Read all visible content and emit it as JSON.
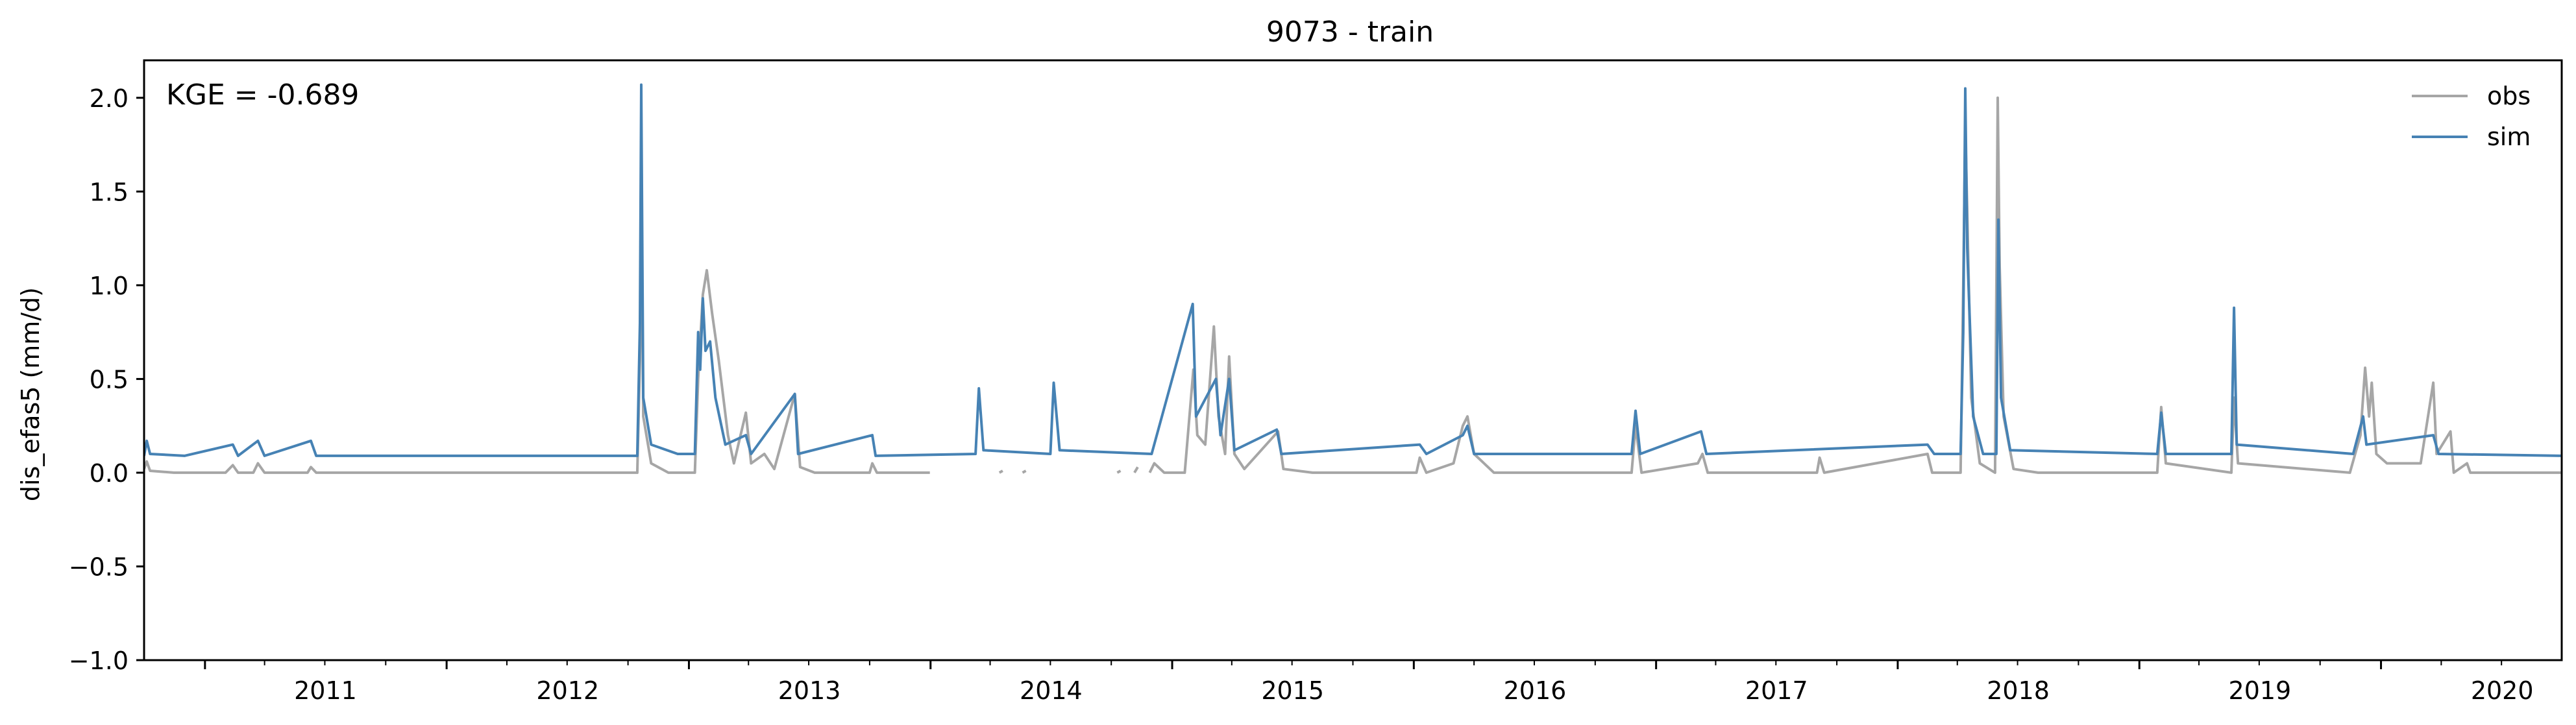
{
  "chart_data": {
    "type": "line",
    "title": "9073 - train",
    "xlabel": "",
    "ylabel": "dis_efas5 (mm/d)",
    "annotation": "KGE = -0.689",
    "xlim": [
      "2010-10-01",
      "2020-09-30"
    ],
    "ylim": [
      -1.0,
      2.2
    ],
    "y_ticks": [
      -1.0,
      -0.5,
      0.0,
      0.5,
      1.0,
      1.5,
      2.0
    ],
    "y_tick_labels": [
      "−1.0",
      "−0.5",
      "0.0",
      "0.5",
      "1.0",
      "1.5",
      "2.0"
    ],
    "x_tick_labels": [
      "2011",
      "2012",
      "2013",
      "2014",
      "2015",
      "2016",
      "2017",
      "2018",
      "2019",
      "2020"
    ],
    "x_ticks": [
      "2011-01-01",
      "2012-01-01",
      "2013-01-01",
      "2014-01-01",
      "2015-01-01",
      "2016-01-01",
      "2017-01-01",
      "2018-01-01",
      "2019-01-01",
      "2020-01-01"
    ],
    "grid": false,
    "legend_position": "top-right",
    "series": [
      {
        "name": "obs",
        "color": "#a6a6a6",
        "points": [
          [
            "2010-10-01",
            0.02
          ],
          [
            "2010-10-05",
            0.06
          ],
          [
            "2010-10-10",
            0.01
          ],
          [
            "2010-11-15",
            0.0
          ],
          [
            "2011-02-01",
            0.0
          ],
          [
            "2011-02-12",
            0.04
          ],
          [
            "2011-02-20",
            0.0
          ],
          [
            "2011-03-15",
            0.0
          ],
          [
            "2011-03-22",
            0.05
          ],
          [
            "2011-04-01",
            0.0
          ],
          [
            "2011-06-05",
            0.0
          ],
          [
            "2011-06-10",
            0.03
          ],
          [
            "2011-06-18",
            0.0
          ],
          [
            "2012-06-01",
            0.0
          ],
          [
            "2012-10-15",
            0.0
          ],
          [
            "2012-10-19",
            0.6
          ],
          [
            "2012-10-21",
            1.55
          ],
          [
            "2012-10-24",
            0.3
          ],
          [
            "2012-11-05",
            0.05
          ],
          [
            "2012-12-01",
            0.0
          ],
          [
            "2013-01-10",
            0.0
          ],
          [
            "2013-01-15",
            0.5
          ],
          [
            "2013-01-22",
            0.95
          ],
          [
            "2013-01-28",
            1.08
          ],
          [
            "2013-02-05",
            0.85
          ],
          [
            "2013-02-15",
            0.6
          ],
          [
            "2013-03-01",
            0.2
          ],
          [
            "2013-03-10",
            0.05
          ],
          [
            "2013-03-28",
            0.32
          ],
          [
            "2013-04-05",
            0.05
          ],
          [
            "2013-04-25",
            0.1
          ],
          [
            "2013-05-10",
            0.02
          ],
          [
            "2013-06-10",
            0.42
          ],
          [
            "2013-06-18",
            0.03
          ],
          [
            "2013-07-10",
            0.0
          ],
          [
            "2013-10-01",
            0.0
          ],
          [
            "2013-10-05",
            0.05
          ],
          [
            "2013-10-12",
            0.0
          ],
          [
            "2013-12-31",
            0.0
          ],
          null,
          [
            "2014-04-15",
            0.0
          ],
          [
            "2014-04-20",
            0.01
          ],
          null,
          [
            "2014-05-20",
            0.0
          ],
          [
            "2014-05-25",
            0.01
          ],
          null,
          [
            "2014-10-10",
            0.0
          ],
          [
            "2014-10-15",
            0.01
          ],
          null,
          [
            "2014-11-05",
            0.0
          ],
          [
            "2014-11-10",
            0.03
          ],
          null,
          [
            "2014-11-28",
            0.0
          ],
          [
            "2014-12-05",
            0.05
          ],
          [
            "2014-12-20",
            0.0
          ],
          [
            "2015-01-20",
            0.0
          ],
          [
            "2015-02-02",
            0.55
          ],
          [
            "2015-02-08",
            0.2
          ],
          [
            "2015-02-20",
            0.15
          ],
          [
            "2015-03-05",
            0.78
          ],
          [
            "2015-03-12",
            0.3
          ],
          [
            "2015-03-22",
            0.1
          ],
          [
            "2015-03-28",
            0.62
          ],
          [
            "2015-04-05",
            0.1
          ],
          [
            "2015-04-20",
            0.02
          ],
          [
            "2015-06-10",
            0.22
          ],
          [
            "2015-06-18",
            0.02
          ],
          [
            "2015-08-01",
            0.0
          ],
          [
            "2016-01-05",
            0.0
          ],
          [
            "2016-01-10",
            0.08
          ],
          [
            "2016-01-20",
            0.0
          ],
          [
            "2016-03-01",
            0.05
          ],
          [
            "2016-03-15",
            0.25
          ],
          [
            "2016-03-22",
            0.3
          ],
          [
            "2016-04-01",
            0.1
          ],
          [
            "2016-05-01",
            0.0
          ],
          [
            "2016-11-25",
            0.0
          ],
          [
            "2016-12-01",
            0.25
          ],
          [
            "2016-12-10",
            0.0
          ],
          [
            "2017-03-05",
            0.05
          ],
          [
            "2017-03-12",
            0.1
          ],
          [
            "2017-03-20",
            0.0
          ],
          [
            "2017-09-01",
            0.0
          ],
          [
            "2017-09-05",
            0.08
          ],
          [
            "2017-09-12",
            0.0
          ],
          [
            "2018-02-15",
            0.1
          ],
          [
            "2018-02-22",
            0.0
          ],
          [
            "2018-04-06",
            0.0
          ],
          [
            "2018-04-10",
            1.0
          ],
          [
            "2018-04-13",
            1.85
          ],
          [
            "2018-04-16",
            1.4
          ],
          [
            "2018-04-22",
            0.4
          ],
          [
            "2018-05-05",
            0.05
          ],
          [
            "2018-05-28",
            0.0
          ],
          [
            "2018-06-01",
            2.0
          ],
          [
            "2018-06-04",
            1.1
          ],
          [
            "2018-06-10",
            0.3
          ],
          [
            "2018-06-25",
            0.02
          ],
          [
            "2018-08-01",
            0.0
          ],
          [
            "2019-01-28",
            0.0
          ],
          [
            "2019-02-03",
            0.35
          ],
          [
            "2019-02-10",
            0.05
          ],
          [
            "2019-05-20",
            0.0
          ],
          [
            "2019-05-24",
            0.4
          ],
          [
            "2019-05-30",
            0.05
          ],
          [
            "2019-11-15",
            0.0
          ],
          [
            "2019-12-01",
            0.2
          ],
          [
            "2019-12-08",
            0.56
          ],
          [
            "2019-12-14",
            0.3
          ],
          [
            "2019-12-18",
            0.48
          ],
          [
            "2019-12-25",
            0.1
          ],
          [
            "2020-01-10",
            0.05
          ],
          [
            "2020-03-01",
            0.05
          ],
          [
            "2020-03-20",
            0.48
          ],
          [
            "2020-03-25",
            0.1
          ],
          [
            "2020-04-15",
            0.22
          ],
          [
            "2020-04-20",
            0.0
          ],
          [
            "2020-05-10",
            0.05
          ],
          [
            "2020-05-15",
            0.0
          ],
          [
            "2020-09-30",
            0.0
          ]
        ]
      },
      {
        "name": "sim",
        "color": "#4682b4",
        "points": [
          [
            "2010-10-01",
            0.09
          ],
          [
            "2010-10-05",
            0.17
          ],
          [
            "2010-10-10",
            0.1
          ],
          [
            "2010-12-01",
            0.09
          ],
          [
            "2011-02-12",
            0.15
          ],
          [
            "2011-02-20",
            0.09
          ],
          [
            "2011-03-22",
            0.17
          ],
          [
            "2011-04-01",
            0.09
          ],
          [
            "2011-06-10",
            0.17
          ],
          [
            "2011-06-18",
            0.09
          ],
          [
            "2012-10-15",
            0.09
          ],
          [
            "2012-10-19",
            0.8
          ],
          [
            "2012-10-21",
            2.07
          ],
          [
            "2012-10-24",
            0.4
          ],
          [
            "2012-11-05",
            0.15
          ],
          [
            "2012-12-15",
            0.1
          ],
          [
            "2013-01-10",
            0.1
          ],
          [
            "2013-01-15",
            0.75
          ],
          [
            "2013-01-18",
            0.55
          ],
          [
            "2013-01-22",
            0.93
          ],
          [
            "2013-01-26",
            0.65
          ],
          [
            "2013-02-02",
            0.7
          ],
          [
            "2013-02-10",
            0.4
          ],
          [
            "2013-02-25",
            0.15
          ],
          [
            "2013-03-28",
            0.2
          ],
          [
            "2013-04-05",
            0.1
          ],
          [
            "2013-06-10",
            0.42
          ],
          [
            "2013-06-15",
            0.1
          ],
          [
            "2013-10-05",
            0.2
          ],
          [
            "2013-10-10",
            0.09
          ],
          [
            "2014-03-10",
            0.1
          ],
          [
            "2014-03-15",
            0.45
          ],
          [
            "2014-03-22",
            0.12
          ],
          [
            "2014-07-01",
            0.1
          ],
          [
            "2014-07-06",
            0.48
          ],
          [
            "2014-07-15",
            0.12
          ],
          [
            "2014-12-01",
            0.1
          ],
          [
            "2015-02-01",
            0.9
          ],
          [
            "2015-02-06",
            0.3
          ],
          [
            "2015-03-08",
            0.5
          ],
          [
            "2015-03-15",
            0.2
          ],
          [
            "2015-03-28",
            0.5
          ],
          [
            "2015-04-05",
            0.12
          ],
          [
            "2015-06-08",
            0.23
          ],
          [
            "2015-06-15",
            0.1
          ],
          [
            "2016-01-10",
            0.15
          ],
          [
            "2016-01-20",
            0.1
          ],
          [
            "2016-03-15",
            0.2
          ],
          [
            "2016-03-22",
            0.25
          ],
          [
            "2016-04-01",
            0.1
          ],
          [
            "2016-11-25",
            0.1
          ],
          [
            "2016-12-01",
            0.33
          ],
          [
            "2016-12-08",
            0.1
          ],
          [
            "2017-03-10",
            0.22
          ],
          [
            "2017-03-18",
            0.1
          ],
          [
            "2018-02-15",
            0.15
          ],
          [
            "2018-02-25",
            0.1
          ],
          [
            "2018-04-06",
            0.1
          ],
          [
            "2018-04-10",
            0.75
          ],
          [
            "2018-04-13",
            2.05
          ],
          [
            "2018-04-16",
            1.2
          ],
          [
            "2018-04-25",
            0.3
          ],
          [
            "2018-05-10",
            0.1
          ],
          [
            "2018-05-30",
            0.1
          ],
          [
            "2018-06-02",
            1.35
          ],
          [
            "2018-06-06",
            0.4
          ],
          [
            "2018-06-20",
            0.12
          ],
          [
            "2019-01-28",
            0.1
          ],
          [
            "2019-02-03",
            0.32
          ],
          [
            "2019-02-10",
            0.1
          ],
          [
            "2019-05-20",
            0.1
          ],
          [
            "2019-05-24",
            0.88
          ],
          [
            "2019-05-28",
            0.15
          ],
          [
            "2019-11-20",
            0.1
          ],
          [
            "2019-12-05",
            0.3
          ],
          [
            "2019-12-10",
            0.15
          ],
          [
            "2020-03-20",
            0.2
          ],
          [
            "2020-03-28",
            0.1
          ],
          [
            "2020-09-30",
            0.09
          ]
        ]
      }
    ]
  }
}
